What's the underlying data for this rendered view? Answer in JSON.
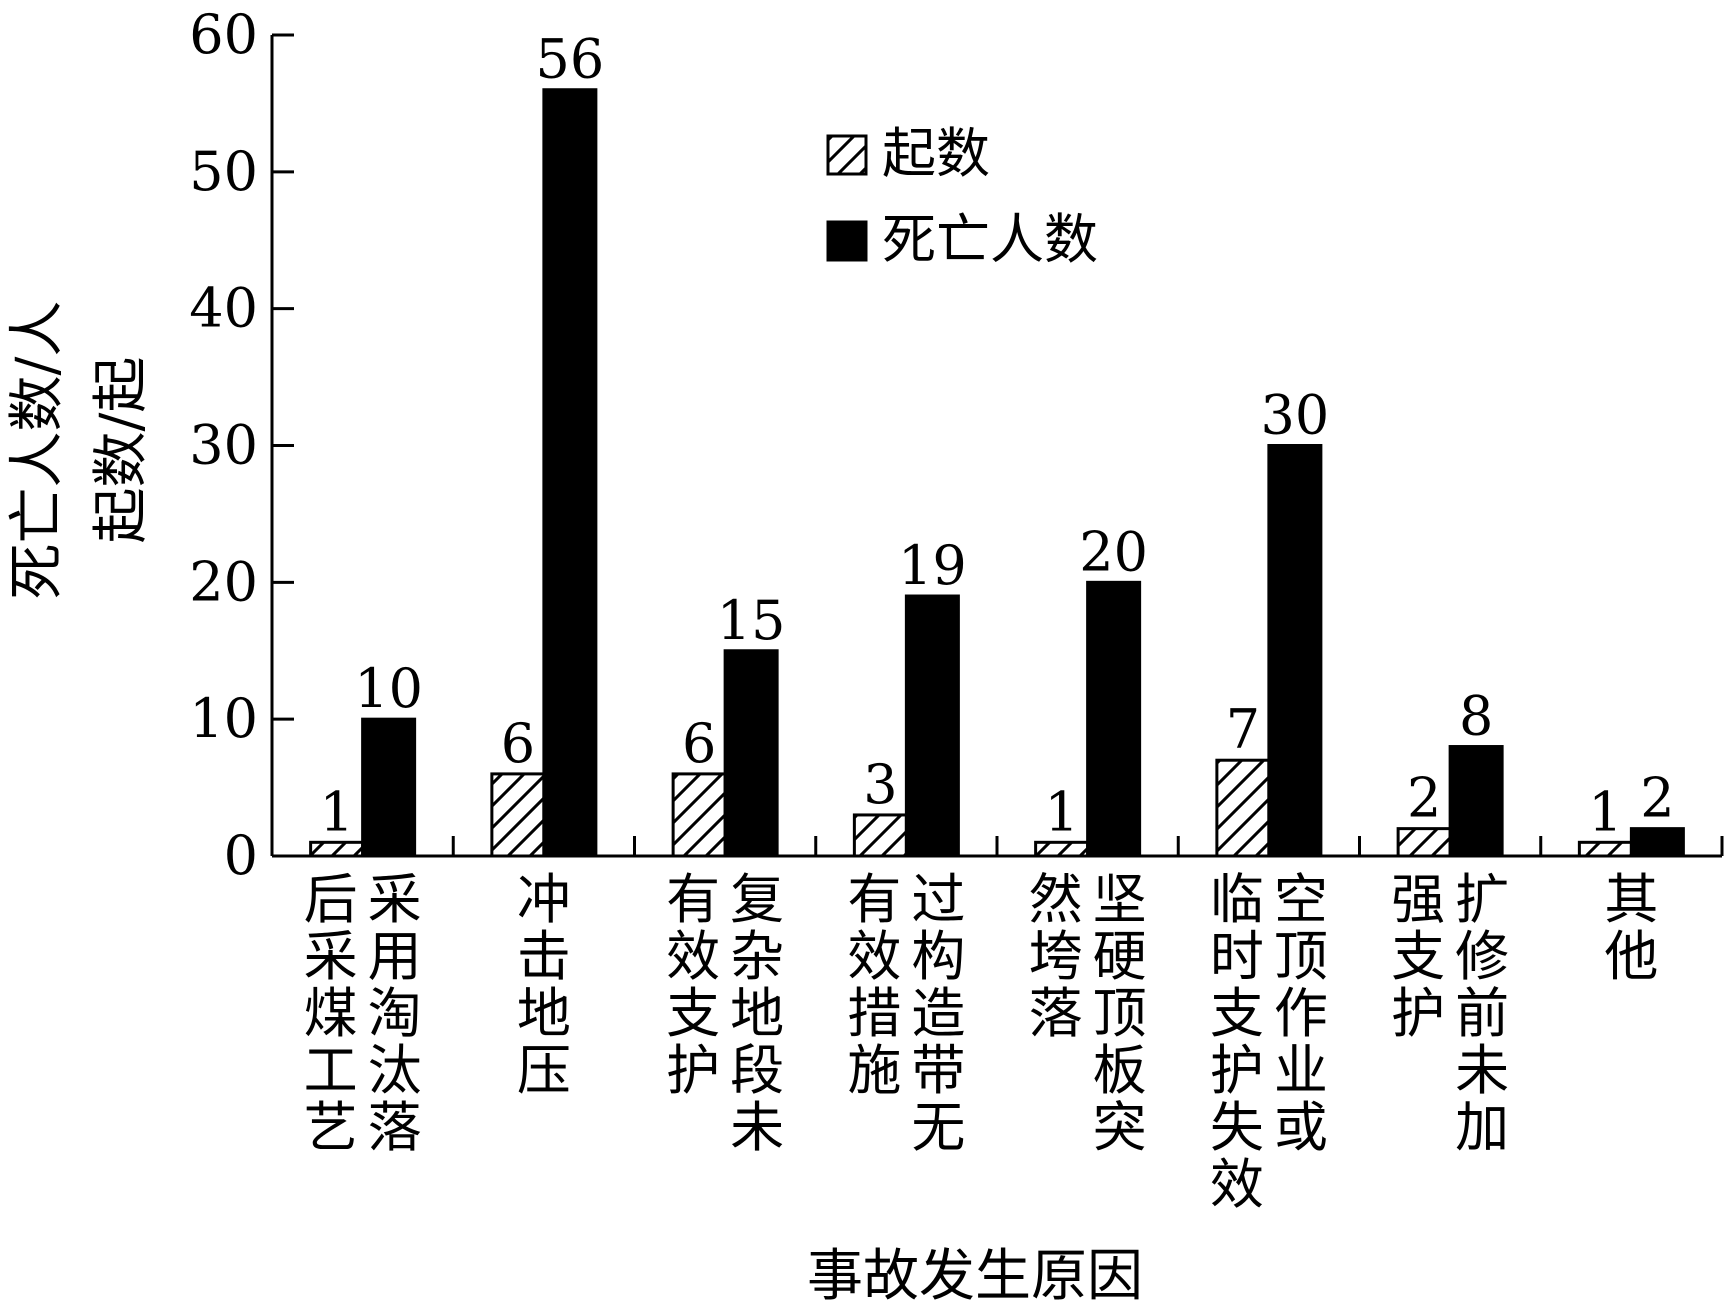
{
  "chart_data": {
    "type": "bar",
    "xlabel": "事故发生原因",
    "ylabel": [
      "死亡人数/人",
      "起数/起"
    ],
    "ylim": [
      0,
      60
    ],
    "yticks": [
      0,
      10,
      20,
      30,
      40,
      50,
      60
    ],
    "grid": false,
    "legend_position": "top-center",
    "categories": [
      {
        "label": "采用淘汰落后采煤工艺",
        "columns": [
          "采用淘汰落",
          "后采煤工艺"
        ]
      },
      {
        "label": "冲击地压",
        "columns": [
          "冲击地压"
        ]
      },
      {
        "label": "复杂地段未有效支护",
        "columns": [
          "复杂地段未",
          "有效支护"
        ]
      },
      {
        "label": "过构造带无有效措施",
        "columns": [
          "过构造带无",
          "有效措施"
        ]
      },
      {
        "label": "坚硬顶板突然垮落",
        "columns": [
          "坚硬顶板突",
          "然垮落"
        ]
      },
      {
        "label": "空顶作业或临时支护失效",
        "columns": [
          "空顶作业或",
          "临时支护失效"
        ]
      },
      {
        "label": "扩修前未加强支护",
        "columns": [
          "扩修前未加",
          "强支护"
        ]
      },
      {
        "label": "其他",
        "columns": [
          "其他"
        ]
      }
    ],
    "series": [
      {
        "name": "起数",
        "pattern": "hatch",
        "color": "#ffffff",
        "values": [
          1,
          6,
          6,
          3,
          1,
          7,
          2,
          1
        ]
      },
      {
        "name": "死亡人数",
        "pattern": "solid",
        "color": "#000000",
        "values": [
          10,
          56,
          15,
          19,
          20,
          30,
          8,
          2
        ]
      }
    ]
  }
}
